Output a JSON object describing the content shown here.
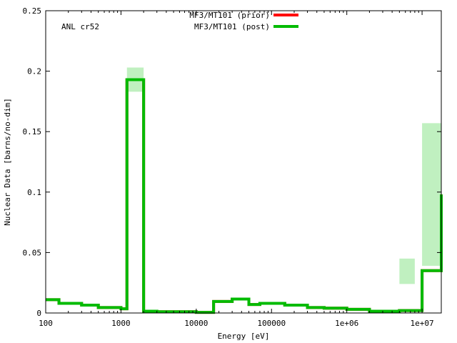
{
  "chart_data": {
    "type": "line",
    "step": true,
    "xscale": "log",
    "xlim": [
      100,
      18000000
    ],
    "ylim": [
      0,
      0.25
    ],
    "xlabel": "Energy [eV]",
    "ylabel": "Nuclear Data [barns/no-dim]",
    "annotation": "ANL cr52",
    "grid": false,
    "legend_position": "top-center",
    "xticks": [
      {
        "value": 100,
        "label": "100"
      },
      {
        "value": 1000,
        "label": "1000"
      },
      {
        "value": 10000,
        "label": "10000"
      },
      {
        "value": 100000,
        "label": "100000"
      },
      {
        "value": 1000000,
        "label": "1e+06"
      },
      {
        "value": 10000000,
        "label": "1e+07"
      }
    ],
    "yticks": [
      {
        "value": 0,
        "label": "0"
      },
      {
        "value": 0.05,
        "label": "0.05"
      },
      {
        "value": 0.1,
        "label": "0.1"
      },
      {
        "value": 0.15,
        "label": "0.15"
      },
      {
        "value": 0.2,
        "label": "0.2"
      },
      {
        "value": 0.25,
        "label": "0.25"
      }
    ],
    "series": [
      {
        "name": "MF3/MT101 (prior)",
        "color": "#ff0000",
        "edges": [
          100,
          150,
          300,
          500,
          1000,
          1200,
          2000,
          3000,
          10000,
          17000,
          30000,
          50000,
          70000,
          150000,
          300000,
          500000,
          1000000,
          2000000,
          5000000,
          10000000,
          18000000
        ],
        "values": [
          0.011,
          0.008,
          0.0065,
          0.0045,
          0.0035,
          0.193,
          0.0015,
          0.001,
          0.0005,
          0.0095,
          0.0115,
          0.007,
          0.008,
          0.0065,
          0.0045,
          0.004,
          0.003,
          0.0015,
          0.002,
          0.035,
          0.098
        ]
      },
      {
        "name": "MF3/MT101 (post)",
        "color": "#00bb00",
        "edges": [
          100,
          150,
          300,
          500,
          1000,
          1200,
          2000,
          3000,
          10000,
          17000,
          30000,
          50000,
          70000,
          150000,
          300000,
          500000,
          1000000,
          2000000,
          5000000,
          10000000,
          18000000
        ],
        "values": [
          0.011,
          0.008,
          0.0065,
          0.0045,
          0.0035,
          0.193,
          0.0015,
          0.001,
          0.0005,
          0.0095,
          0.0115,
          0.007,
          0.008,
          0.0065,
          0.0045,
          0.004,
          0.003,
          0.0015,
          0.002,
          0.035,
          0.098
        ]
      }
    ],
    "uncertainty_bands": {
      "color": "#c0f0c0",
      "bands": [
        {
          "x0": 1200,
          "x1": 2000,
          "low": 0.183,
          "high": 0.203
        },
        {
          "x0": 5000000,
          "x1": 8000000,
          "low": 0.024,
          "high": 0.045
        },
        {
          "x0": 10000000,
          "x1": 18000000,
          "low": 0.039,
          "high": 0.157
        }
      ]
    }
  }
}
